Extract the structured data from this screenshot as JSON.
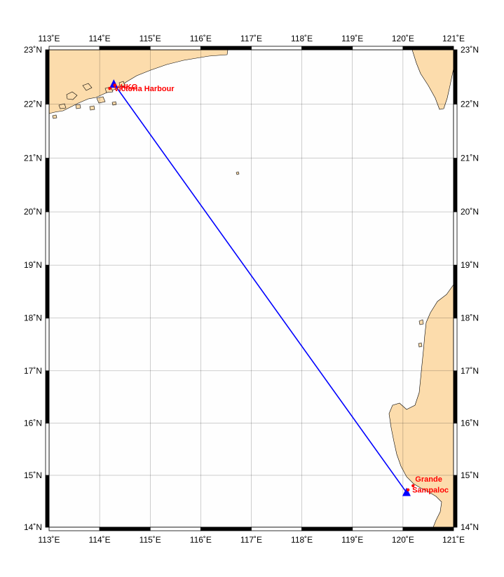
{
  "map": {
    "projection": "mercator",
    "lon_range": [
      113,
      121
    ],
    "lat_range": [
      14,
      23
    ],
    "grid": true,
    "frame_style": "alternating black and white",
    "colors": {
      "land": "#fcdcac",
      "sea": "#fefefe",
      "route": "#0000ff",
      "labels": "#ff0000"
    },
    "lon_ticks": [
      {
        "value": 113,
        "label": "113˚E"
      },
      {
        "value": 114,
        "label": "114˚E"
      },
      {
        "value": 115,
        "label": "115˚E"
      },
      {
        "value": 116,
        "label": "116˚E"
      },
      {
        "value": 117,
        "label": "117˚E"
      },
      {
        "value": 118,
        "label": "118˚E"
      },
      {
        "value": 119,
        "label": "119˚E"
      },
      {
        "value": 120,
        "label": "120˚E"
      },
      {
        "value": 121,
        "label": "121˚E"
      }
    ],
    "lat_ticks": [
      {
        "value": 14,
        "label": "14˚N"
      },
      {
        "value": 15,
        "label": "15˚N"
      },
      {
        "value": 16,
        "label": "16˚N"
      },
      {
        "value": 17,
        "label": "17˚N"
      },
      {
        "value": 18,
        "label": "18˚N"
      },
      {
        "value": 19,
        "label": "19˚N"
      },
      {
        "value": 20,
        "label": "20˚N"
      },
      {
        "value": 21,
        "label": "21˚N"
      },
      {
        "value": 22,
        "label": "22˚N"
      },
      {
        "value": 23,
        "label": "23˚N"
      }
    ],
    "places": [
      {
        "name": "Victoria Harbour",
        "lon": 114.2,
        "lat": 22.29
      },
      {
        "name": "HKG",
        "lon": 114.3,
        "lat": 22.35
      },
      {
        "name": "Grande",
        "lon": 120.2,
        "lat": 14.8
      },
      {
        "name": "Sampaloc",
        "lon": 120.1,
        "lat": 14.72
      }
    ],
    "route": {
      "from": {
        "lon": 114.28,
        "lat": 22.38
      },
      "to": {
        "lon": 120.07,
        "lat": 14.67
      }
    }
  }
}
